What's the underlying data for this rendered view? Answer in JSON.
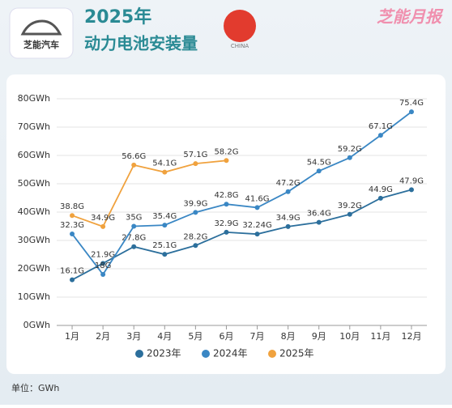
{
  "chart_data": {
    "type": "line",
    "title": "2025年",
    "subtitle": "动力电池安装量",
    "logo_text": "芝能汽车",
    "brand": "芝能月报",
    "flag_label": "CHINA",
    "unit": "单位：GWh",
    "categories": [
      "1月",
      "2月",
      "3月",
      "4月",
      "5月",
      "6月",
      "7月",
      "8月",
      "9月",
      "10月",
      "11月",
      "12月"
    ],
    "series": [
      {
        "name": "2023年",
        "color": "#2c6f9c",
        "values": [
          16.1,
          21.9,
          27.8,
          25.1,
          28.2,
          32.9,
          32.24,
          34.9,
          36.4,
          39.2,
          44.9,
          47.9
        ],
        "value_labels": [
          "16.1G",
          "21.9G",
          "27.8G",
          "25.1G",
          "28.2G",
          "32.9G",
          "32.24G",
          "34.9G",
          "36.4G",
          "39.2G",
          "44.9G",
          "47.9G"
        ]
      },
      {
        "name": "2024年",
        "color": "#3a87c4",
        "values": [
          32.3,
          18,
          35,
          35.4,
          39.9,
          42.8,
          41.6,
          47.2,
          54.5,
          59.2,
          67.1,
          75.4
        ],
        "value_labels": [
          "32.3G",
          "18G",
          "35G",
          "35.4G",
          "39.9G",
          "42.8G",
          "41.6G",
          "47.2G",
          "54.5G",
          "59.2G",
          "67.1G",
          "75.4G"
        ]
      },
      {
        "name": "2025年",
        "color": "#f0a23e",
        "values": [
          38.8,
          34.9,
          56.6,
          54.1,
          57.1,
          58.2,
          null,
          null,
          null,
          null,
          null,
          null
        ],
        "value_labels": [
          "38.8G",
          "34.9G",
          "56.6G",
          "54.1G",
          "57.1G",
          "58.2G",
          null,
          null,
          null,
          null,
          null,
          null
        ]
      }
    ],
    "ylim": [
      0,
      80
    ],
    "yticks": [
      {
        "value": 0,
        "label": "0GWh"
      },
      {
        "value": 10,
        "label": "10GWh"
      },
      {
        "value": 20,
        "label": "20GWh"
      },
      {
        "value": 30,
        "label": "30GWh"
      },
      {
        "value": 40,
        "label": "40GWh"
      },
      {
        "value": 50,
        "label": "50GWh"
      },
      {
        "value": 60,
        "label": "60GWh"
      },
      {
        "value": 70,
        "label": "70GWh"
      },
      {
        "value": 80,
        "label": "80GWh"
      }
    ],
    "grid": true
  }
}
